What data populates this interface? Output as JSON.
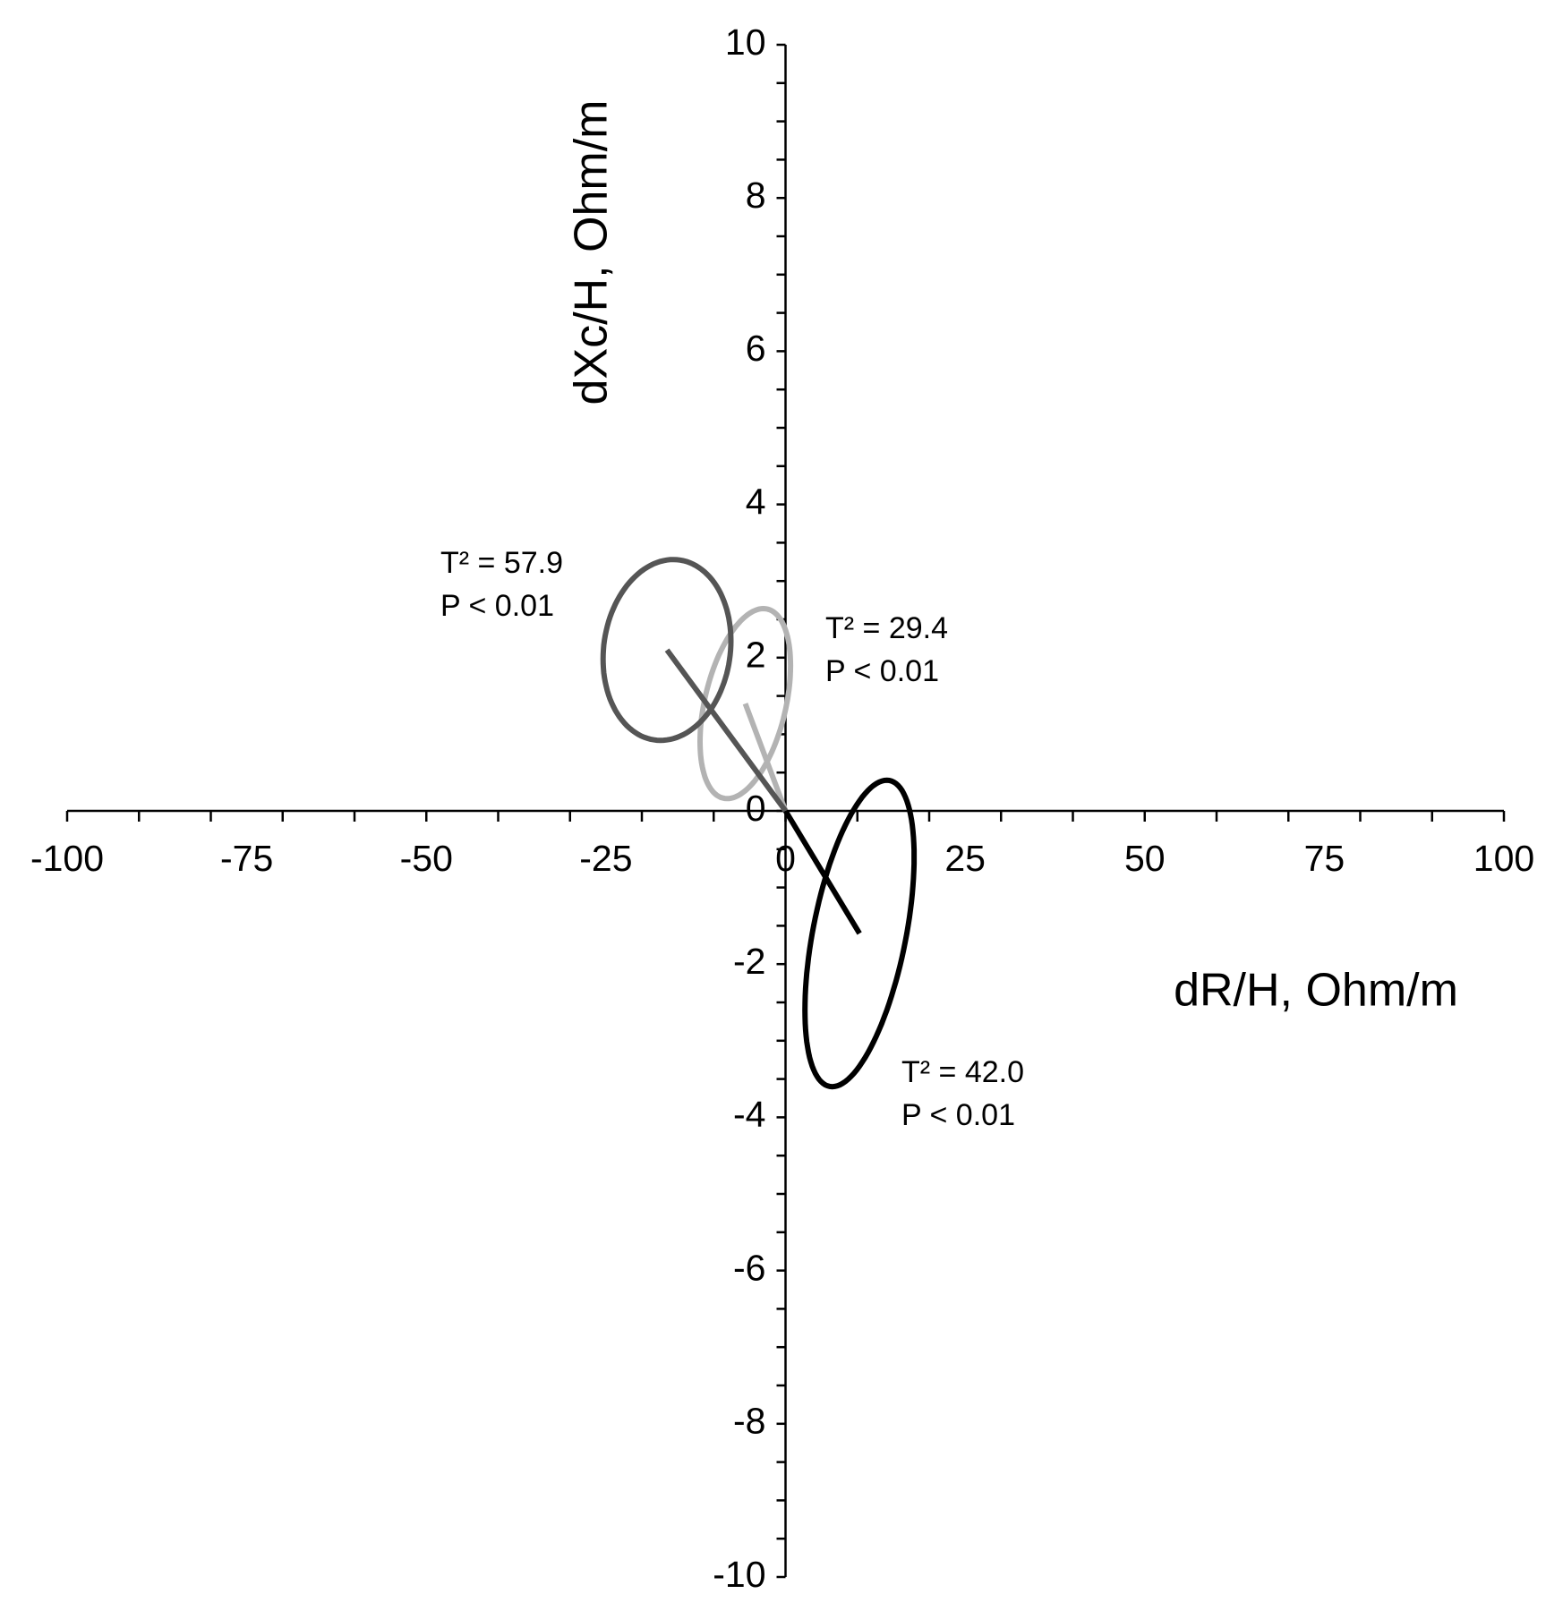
{
  "chart_data": {
    "type": "ellipse-vector",
    "xlabel": "dR/H, Ohm/m",
    "ylabel": "dXc/H, Ohm/m",
    "xlim": [
      -100,
      100
    ],
    "ylim": [
      -10,
      10
    ],
    "xticks": [
      -100,
      -75,
      -50,
      -25,
      0,
      25,
      50,
      75,
      100
    ],
    "yticks": [
      -10,
      -8,
      -6,
      -4,
      -2,
      0,
      2,
      4,
      6,
      8,
      10
    ],
    "xminorticks": [
      -100,
      -90,
      -80,
      -70,
      -60,
      -50,
      -40,
      -30,
      -20,
      -10,
      0,
      10,
      20,
      30,
      40,
      50,
      60,
      70,
      80,
      90,
      100
    ],
    "yminorticks": [
      -10,
      -9.5,
      -9,
      -8.5,
      -8,
      -7.5,
      -7,
      -6.5,
      -6,
      -5.5,
      -5,
      -4.5,
      -4,
      -3.5,
      -3,
      -2.5,
      -2,
      -1.5,
      -1,
      -0.5,
      0,
      0.5,
      1,
      1.5,
      2,
      2.5,
      3,
      3.5,
      4,
      4.5,
      5,
      5.5,
      6,
      6.5,
      7,
      7.5,
      8,
      8.5,
      9,
      9.5,
      10
    ],
    "series": [
      {
        "color": "#b3b3b3",
        "x": -5.6,
        "y": 1.4,
        "rx": 6.3,
        "ry": 1.24,
        "rho": 0.4,
        "annotation": [
          "T² = 29.4",
          "P < 0.01"
        ]
      },
      {
        "color": "#555555",
        "x": -16.5,
        "y": 2.1,
        "rx": 8.9,
        "ry": 1.18,
        "rho": 0.1,
        "annotation": [
          "T² = 57.9",
          "P < 0.01"
        ]
      },
      {
        "color": "#000000",
        "x": 10.3,
        "y": -1.6,
        "rx": 7.6,
        "ry": 2.0,
        "rho": 0.5,
        "annotation": [
          "T² = 42.0",
          "P < 0.01"
        ]
      }
    ]
  }
}
